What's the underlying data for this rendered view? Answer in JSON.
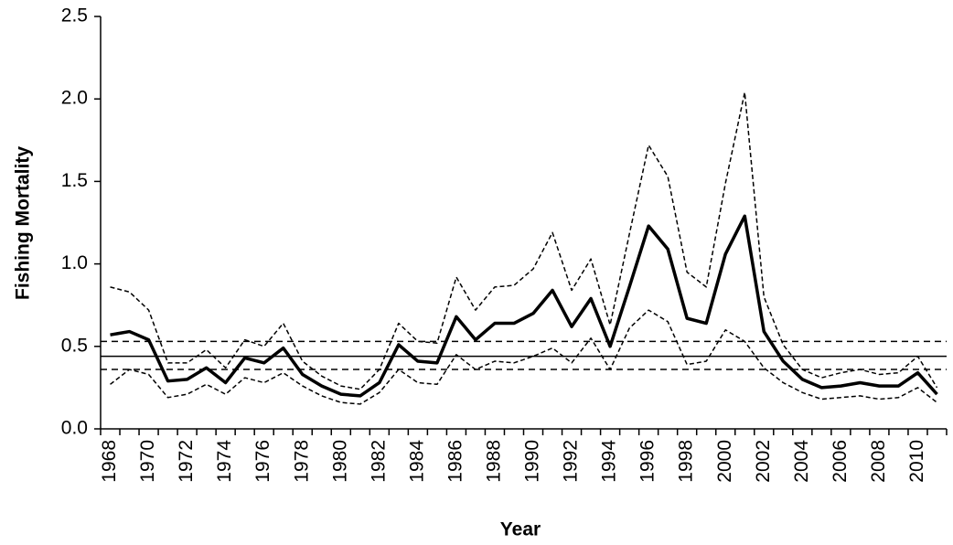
{
  "chart_data": {
    "type": "line",
    "y_label": "Fishing Mortality",
    "x_label": "Year",
    "categories": [
      "1968",
      null,
      "1970",
      null,
      "1972",
      null,
      "1974",
      null,
      "1976",
      null,
      "1978",
      null,
      "1980",
      null,
      "1982",
      null,
      "1984",
      null,
      "1986",
      null,
      "1988",
      null,
      "1990",
      null,
      "1992",
      null,
      "1994",
      null,
      "1996",
      null,
      "1998",
      null,
      "2000",
      null,
      "2002",
      null,
      "2004",
      null,
      "2006",
      null,
      "2008",
      null,
      "2010",
      null
    ],
    "series": [
      {
        "color": "#000000",
        "style": "solid",
        "width": 3.5,
        "values": [
          0.57,
          0.59,
          0.54,
          0.29,
          0.3,
          0.37,
          0.28,
          0.43,
          0.4,
          0.49,
          0.33,
          0.26,
          0.21,
          0.2,
          0.28,
          0.51,
          0.41,
          0.4,
          0.68,
          0.54,
          0.64,
          0.64,
          0.7,
          0.84,
          0.62,
          0.79,
          0.5,
          0.86,
          1.23,
          1.09,
          0.67,
          0.64,
          1.06,
          1.29,
          0.59,
          0.41,
          0.3,
          0.25,
          0.26,
          0.28,
          0.26,
          0.26,
          0.34,
          0.21
        ]
      },
      {
        "color": "#000000",
        "style": "dashed",
        "width": 1.5,
        "values": [
          0.86,
          0.83,
          0.72,
          0.4,
          0.4,
          0.48,
          0.37,
          0.54,
          0.5,
          0.64,
          0.41,
          0.32,
          0.26,
          0.24,
          0.36,
          0.64,
          0.53,
          0.52,
          0.92,
          0.72,
          0.86,
          0.87,
          0.97,
          1.19,
          0.84,
          1.03,
          0.63,
          1.18,
          1.72,
          1.53,
          0.95,
          0.86,
          1.49,
          2.04,
          0.8,
          0.51,
          0.36,
          0.31,
          0.34,
          0.36,
          0.33,
          0.34,
          0.44,
          0.25
        ]
      },
      {
        "color": "#000000",
        "style": "dashed",
        "width": 1.5,
        "values": [
          0.27,
          0.36,
          0.33,
          0.19,
          0.21,
          0.27,
          0.21,
          0.31,
          0.28,
          0.34,
          0.26,
          0.2,
          0.16,
          0.15,
          0.22,
          0.36,
          0.28,
          0.27,
          0.45,
          0.36,
          0.41,
          0.4,
          0.44,
          0.49,
          0.4,
          0.55,
          0.36,
          0.61,
          0.72,
          0.65,
          0.39,
          0.41,
          0.6,
          0.53,
          0.37,
          0.28,
          0.22,
          0.18,
          0.19,
          0.2,
          0.18,
          0.19,
          0.25,
          0.16
        ]
      }
    ],
    "reference_lines": [
      {
        "value": 0.44,
        "style": "solid"
      },
      {
        "value": 0.53,
        "style": "dashed"
      },
      {
        "value": 0.36,
        "style": "dashed"
      }
    ],
    "ylim": [
      0,
      2.5
    ],
    "yticks": [
      {
        "value": 0,
        "label": "0.0"
      },
      0.5,
      {
        "value": 1,
        "label": "1.0"
      },
      1.5,
      {
        "value": 2,
        "label": "2.0"
      },
      2.5
    ]
  }
}
